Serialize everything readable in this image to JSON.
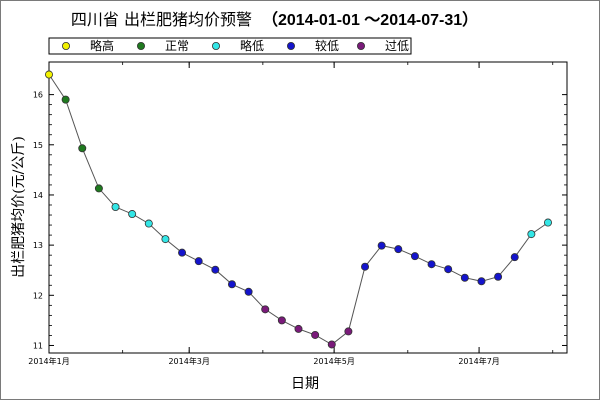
{
  "chart_data": {
    "type": "scatter",
    "title": {
      "main": "四川省 出栏肥猪均价预警",
      "range": "（2014-01-01 ～2014-07-31）"
    },
    "xlabel": "日期",
    "ylabel": "出栏肥猪均价(元/公斤)",
    "xlim": [
      "2014-01-01",
      "2014-08-07"
    ],
    "ylim": [
      10.85,
      16.65
    ],
    "y_ticks": [
      11,
      12,
      13,
      14,
      15,
      16
    ],
    "x_tick_labels": [
      {
        "date": "2014-01-01",
        "label": "2014年1月"
      },
      {
        "date": "2014-03-01",
        "label": "2014年3月"
      },
      {
        "date": "2014-05-01",
        "label": "2014年5月"
      },
      {
        "date": "2014-07-01",
        "label": "2014年7月"
      }
    ],
    "grid": false,
    "line_color": "#555555",
    "categories": [
      {
        "key": "lh",
        "name": "略高",
        "color": "#f2f200"
      },
      {
        "key": "zc",
        "name": "正常",
        "color": "#1f7a1f"
      },
      {
        "key": "ld",
        "name": "略低",
        "color": "#33e6e6"
      },
      {
        "key": "jd",
        "name": "较低",
        "color": "#1414cc"
      },
      {
        "key": "gd",
        "name": "过低",
        "color": "#7a1a7a"
      }
    ],
    "points": [
      {
        "x": "2014-01-01",
        "y": 16.4,
        "cat": "lh"
      },
      {
        "x": "2014-01-08",
        "y": 15.9,
        "cat": "zc"
      },
      {
        "x": "2014-01-15",
        "y": 14.93,
        "cat": "zc"
      },
      {
        "x": "2014-01-22",
        "y": 14.13,
        "cat": "zc"
      },
      {
        "x": "2014-01-29",
        "y": 13.76,
        "cat": "ld"
      },
      {
        "x": "2014-02-05",
        "y": 13.62,
        "cat": "ld"
      },
      {
        "x": "2014-02-12",
        "y": 13.43,
        "cat": "ld"
      },
      {
        "x": "2014-02-19",
        "y": 13.12,
        "cat": "ld"
      },
      {
        "x": "2014-02-26",
        "y": 12.85,
        "cat": "jd"
      },
      {
        "x": "2014-03-05",
        "y": 12.68,
        "cat": "jd"
      },
      {
        "x": "2014-03-12",
        "y": 12.51,
        "cat": "jd"
      },
      {
        "x": "2014-03-19",
        "y": 12.22,
        "cat": "jd"
      },
      {
        "x": "2014-03-26",
        "y": 12.07,
        "cat": "jd"
      },
      {
        "x": "2014-04-02",
        "y": 11.72,
        "cat": "gd"
      },
      {
        "x": "2014-04-09",
        "y": 11.5,
        "cat": "gd"
      },
      {
        "x": "2014-04-16",
        "y": 11.33,
        "cat": "gd"
      },
      {
        "x": "2014-04-23",
        "y": 11.21,
        "cat": "gd"
      },
      {
        "x": "2014-04-30",
        "y": 11.02,
        "cat": "gd"
      },
      {
        "x": "2014-05-07",
        "y": 11.28,
        "cat": "gd"
      },
      {
        "x": "2014-05-14",
        "y": 12.57,
        "cat": "jd"
      },
      {
        "x": "2014-05-21",
        "y": 12.99,
        "cat": "jd"
      },
      {
        "x": "2014-05-28",
        "y": 12.92,
        "cat": "jd"
      },
      {
        "x": "2014-06-04",
        "y": 12.78,
        "cat": "jd"
      },
      {
        "x": "2014-06-11",
        "y": 12.62,
        "cat": "jd"
      },
      {
        "x": "2014-06-18",
        "y": 12.52,
        "cat": "jd"
      },
      {
        "x": "2014-06-25",
        "y": 12.35,
        "cat": "jd"
      },
      {
        "x": "2014-07-02",
        "y": 12.28,
        "cat": "jd"
      },
      {
        "x": "2014-07-09",
        "y": 12.37,
        "cat": "jd"
      },
      {
        "x": "2014-07-16",
        "y": 12.76,
        "cat": "jd"
      },
      {
        "x": "2014-07-23",
        "y": 13.22,
        "cat": "ld"
      },
      {
        "x": "2014-07-30",
        "y": 13.45,
        "cat": "ld"
      }
    ]
  }
}
